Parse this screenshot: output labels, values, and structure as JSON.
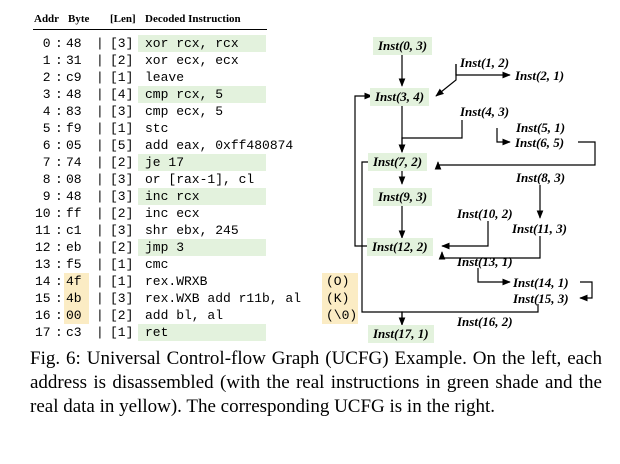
{
  "table": {
    "headers": {
      "addr": "Addr",
      "byte": "Byte",
      "len": "[Len]",
      "decoded": "Decoded Instruction"
    },
    "rows": [
      {
        "addr": " 0",
        "byte": "48",
        "len": "[3]",
        "instr": "xor rcx, rcx",
        "note": ""
      },
      {
        "addr": " 1",
        "byte": "31",
        "len": "[2]",
        "instr": "xor ecx, ecx",
        "note": ""
      },
      {
        "addr": " 2",
        "byte": "c9",
        "len": "[1]",
        "instr": "leave",
        "note": ""
      },
      {
        "addr": " 3",
        "byte": "48",
        "len": "[4]",
        "instr": "cmp rcx, 5",
        "note": ""
      },
      {
        "addr": " 4",
        "byte": "83",
        "len": "[3]",
        "instr": "cmp ecx, 5",
        "note": ""
      },
      {
        "addr": " 5",
        "byte": "f9",
        "len": "[1]",
        "instr": "stc",
        "note": ""
      },
      {
        "addr": " 6",
        "byte": "05",
        "len": "[5]",
        "instr": "add eax, 0xff480874",
        "note": ""
      },
      {
        "addr": " 7",
        "byte": "74",
        "len": "[2]",
        "instr": "je 17",
        "note": ""
      },
      {
        "addr": " 8",
        "byte": "08",
        "len": "[3]",
        "instr": "or [rax-1], cl",
        "note": ""
      },
      {
        "addr": " 9",
        "byte": "48",
        "len": "[3]",
        "instr": "inc rcx",
        "note": ""
      },
      {
        "addr": "10",
        "byte": "ff",
        "len": "[2]",
        "instr": "inc ecx",
        "note": ""
      },
      {
        "addr": "11",
        "byte": "c1",
        "len": "[3]",
        "instr": "shr ebx, 245",
        "note": ""
      },
      {
        "addr": "12",
        "byte": "eb",
        "len": "[2]",
        "instr": "jmp 3",
        "note": ""
      },
      {
        "addr": "13",
        "byte": "f5",
        "len": "[1]",
        "instr": "cmc",
        "note": ""
      },
      {
        "addr": "14",
        "byte": "4f",
        "len": "[1]",
        "instr": "rex.WRXB",
        "note": "(O)"
      },
      {
        "addr": "15",
        "byte": "4b",
        "len": "[3]",
        "instr": "rex.WXB add r11b, al",
        "note": "(K)"
      },
      {
        "addr": "16",
        "byte": "00",
        "len": "[2]",
        "instr": "add bl, al",
        "note": "(\\0)"
      },
      {
        "addr": "17",
        "byte": "c3",
        "len": "[1]",
        "instr": "ret",
        "note": ""
      }
    ]
  },
  "graph": {
    "nodes": [
      {
        "id": "n0",
        "label": "Inst(0, 3)",
        "real": true
      },
      {
        "id": "n1",
        "label": "Inst(1, 2)",
        "real": false
      },
      {
        "id": "n2",
        "label": "Inst(2, 1)",
        "real": false
      },
      {
        "id": "n3",
        "label": "Inst(3, 4)",
        "real": true
      },
      {
        "id": "n4",
        "label": "Inst(4, 3)",
        "real": false
      },
      {
        "id": "n5",
        "label": "Inst(5, 1)",
        "real": false
      },
      {
        "id": "n6",
        "label": "Inst(6, 5)",
        "real": false
      },
      {
        "id": "n7",
        "label": "Inst(7, 2)",
        "real": true
      },
      {
        "id": "n8",
        "label": "Inst(8, 3)",
        "real": false
      },
      {
        "id": "n9",
        "label": "Inst(9, 3)",
        "real": true
      },
      {
        "id": "n10",
        "label": "Inst(10, 2)",
        "real": false
      },
      {
        "id": "n11",
        "label": "Inst(11, 3)",
        "real": false
      },
      {
        "id": "n12",
        "label": "Inst(12, 2)",
        "real": true
      },
      {
        "id": "n13",
        "label": "Inst(13, 1)",
        "real": false
      },
      {
        "id": "n14",
        "label": "Inst(14, 1)",
        "real": false
      },
      {
        "id": "n15",
        "label": "Inst(15, 3)",
        "real": false
      },
      {
        "id": "n16",
        "label": "Inst(16, 2)",
        "real": false
      },
      {
        "id": "n17",
        "label": "Inst(17, 1)",
        "real": true
      }
    ]
  },
  "caption": "Fig. 6: Universal Control-flow Graph (UCFG) Example. On the left, each address is disassembled (with the real instructions in green shade and the real data in yellow). The corresponding UCFG is in the right.",
  "colors": {
    "real_instruction": "#e3f2dd",
    "real_data": "#fbecc4"
  }
}
